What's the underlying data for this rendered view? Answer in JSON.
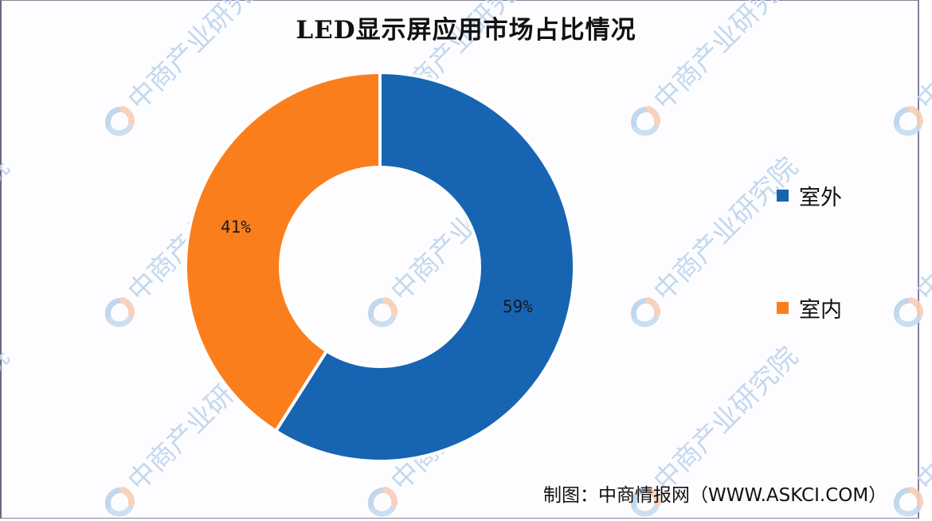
{
  "chart_data": {
    "type": "pie",
    "variant": "donut",
    "title": "LED显示屏应用市场占比情况",
    "categories": [
      "室外",
      "室内"
    ],
    "values": [
      59,
      41
    ],
    "unit": "%",
    "data_labels": [
      "59%",
      "41%"
    ],
    "colors": [
      "#1764B3",
      "#FB7E1C"
    ],
    "legend_position": "right",
    "start_angle_deg": 0,
    "direction": "clockwise"
  },
  "title": "LED显示屏应用市场占比情况",
  "slices": [
    {
      "name": "室外",
      "value": 59,
      "label": "59%",
      "color": "#1764B3"
    },
    {
      "name": "室内",
      "value": 41,
      "label": "41%",
      "color": "#FB7E1C"
    }
  ],
  "legend": {
    "items": [
      {
        "label": "室外",
        "color": "#1764B3"
      },
      {
        "label": "室内",
        "color": "#FB7E1C"
      }
    ]
  },
  "source": "制图：中商情报网（WWW.ASKCI.COM）",
  "watermark": {
    "text": "中商产业研究院",
    "logo": "askci-logo"
  }
}
